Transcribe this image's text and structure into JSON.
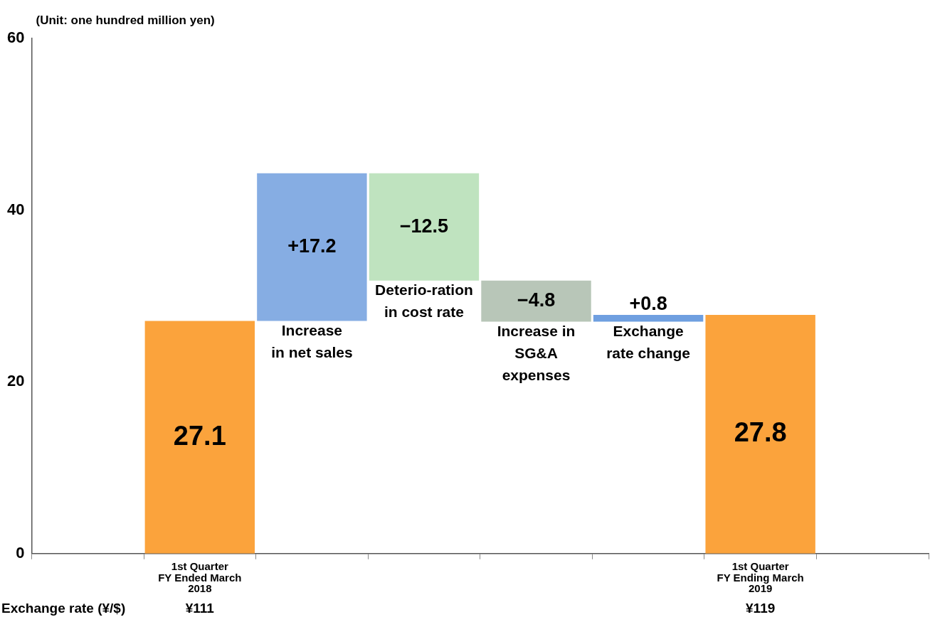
{
  "chart_data": {
    "type": "bar",
    "ylabel": "(Unit: one hundred million yen)",
    "categories": [
      null,
      "1st Quarter\nFY Ended March\n2018",
      null,
      null,
      null,
      null,
      "1st Quarter\nFY Ending March\n2019",
      null
    ],
    "values": [
      null,
      27.1,
      17.2,
      -12.5,
      -4.8,
      0.8,
      27.8,
      null
    ],
    "base": [
      null,
      0,
      27.1,
      44.3,
      31.8,
      27.0,
      0,
      null
    ],
    "colors": [
      null,
      "#fba33c",
      "#86ade3",
      "#bfe3bf",
      "#b8c6b8",
      "#6f9fe0",
      "#fba33c",
      null
    ],
    "value_labels": [
      null,
      "27.1",
      "+17.2",
      "−12.5",
      "−4.8",
      "+0.8",
      "27.8",
      null
    ],
    "ylim": [
      0,
      60
    ],
    "yticks": [
      0,
      20,
      40,
      60
    ],
    "grid": false,
    "legend": false,
    "annotations": [
      {
        "text": "Increase\nin net sales",
        "y": 27.1
      },
      {
        "text": "Deterio-ration\nin cost rate",
        "y": 31.8
      },
      {
        "text": "Increase in\nSG&A\nexpenses",
        "y": 27.0
      },
      {
        "text": "Exchange\nrate change",
        "y": 27.8
      },
      "Exchange rate (¥/$)",
      "¥111",
      "¥119"
    ]
  }
}
